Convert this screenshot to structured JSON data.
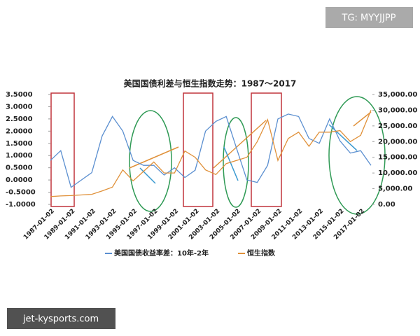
{
  "watermark_top": "TG: MYYJJPP",
  "watermark_bottom": "jet-kysports.com",
  "chart_data": {
    "type": "line",
    "title": "美国国债利差与恒生指数走势：1987～2017",
    "categories": [
      "1987-01-02",
      null,
      "1989-01-02",
      null,
      "1991-01-02",
      null,
      "1993-01-02",
      null,
      "1995-01-02",
      null,
      "1997-01-02",
      null,
      "1999-01-02",
      null,
      "2001-01-02",
      null,
      "2003-01-02",
      null,
      "2005-01-02",
      null,
      "2007-01-02",
      null,
      "2009-01-02",
      null,
      "2011-01-02",
      null,
      "2013-01-02",
      null,
      "2015-01-02",
      null,
      "2017-01-02",
      null
    ],
    "series": [
      {
        "name": "美国国债收益率差：10年-2年",
        "color": "#5b8fd0",
        "axis": "y",
        "values": [
          0.8,
          1.2,
          -0.3,
          0.0,
          0.3,
          1.8,
          2.6,
          2.0,
          0.8,
          0.6,
          0.6,
          0.2,
          0.5,
          0.1,
          0.4,
          2.0,
          2.4,
          2.6,
          1.3,
          0.0,
          -0.1,
          0.6,
          2.5,
          2.7,
          2.6,
          1.7,
          1.5,
          2.5,
          1.6,
          1.1,
          1.2,
          0.6
        ]
      },
      {
        "name": "恒生指数",
        "color": "#e0913a",
        "axis": "y2",
        "values": [
          2500,
          2700,
          2800,
          3000,
          3200,
          4300,
          5500,
          11000,
          7500,
          10500,
          13500,
          10000,
          10000,
          17000,
          15000,
          11000,
          9500,
          13000,
          14000,
          15000,
          20000,
          27000,
          14000,
          21000,
          23000,
          18500,
          23000,
          23000,
          23500,
          20000,
          22000,
          30000
        ]
      }
    ],
    "ylim": [
      -1,
      3.5
    ],
    "yticks": [
      {
        "value": -1,
        "label": "-1.0000"
      },
      {
        "value": -0.5,
        "label": "-0.5000"
      },
      {
        "value": 0,
        "label": "0.0000"
      },
      {
        "value": 0.5,
        "label": "0.5000"
      },
      {
        "value": 1,
        "label": "1.0000"
      },
      {
        "value": 1.5,
        "label": "1.5000"
      },
      {
        "value": 2,
        "label": "2.0000"
      },
      {
        "value": 2.5,
        "label": "2.5000"
      },
      {
        "value": 3,
        "label": "3.0000"
      },
      {
        "value": 3.5,
        "label": "3.5000"
      }
    ],
    "y2lim": [
      0,
      35000
    ],
    "y2ticks": [
      {
        "value": 0,
        "label": "0.00"
      },
      {
        "value": 5000,
        "label": "5,000.00"
      },
      {
        "value": 10000,
        "label": "10,000.00"
      },
      {
        "value": 15000,
        "label": "15,000.00"
      },
      {
        "value": 20000,
        "label": "20,000.00"
      },
      {
        "value": 25000,
        "label": "25,000.00"
      },
      {
        "value": 30000,
        "label": "30,000.00"
      },
      {
        "value": 35000,
        "label": "35,000.00"
      }
    ],
    "grid": false
  }
}
